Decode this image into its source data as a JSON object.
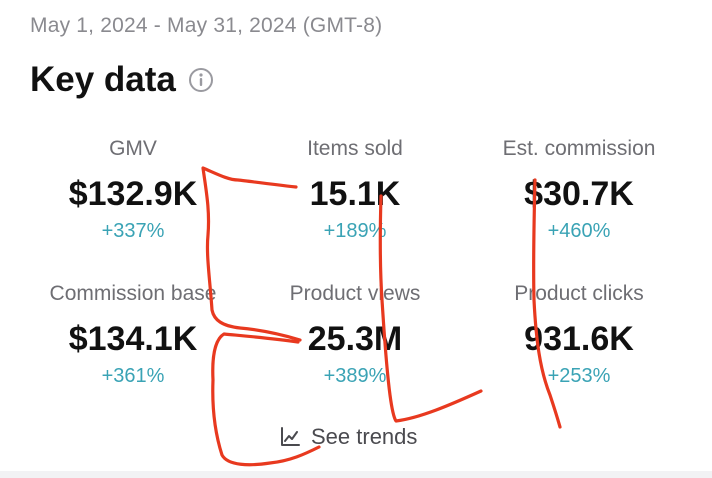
{
  "header": {
    "date_range": "May 1, 2024 - May 31, 2024 (GMT-8)",
    "title": "Key data",
    "info_icon": "info-icon"
  },
  "metrics": [
    {
      "label": "GMV",
      "value": "$132.9K",
      "change": "+337%"
    },
    {
      "label": "Items sold",
      "value": "15.1K",
      "change": "+189%"
    },
    {
      "label": "Est. commission",
      "value": "$30.7K",
      "change": "+460%"
    },
    {
      "label": "Commission base",
      "value": "$134.1K",
      "change": "+361%"
    },
    {
      "label": "Product views",
      "value": "25.3M",
      "change": "+389%"
    },
    {
      "label": "Product clicks",
      "value": "931.6K",
      "change": "+253%"
    }
  ],
  "trends": {
    "label": "See trends",
    "icon": "trend-chart-icon"
  },
  "colors": {
    "positive_change": "#3aa3b5",
    "annotation_stroke": "#e8391f"
  }
}
